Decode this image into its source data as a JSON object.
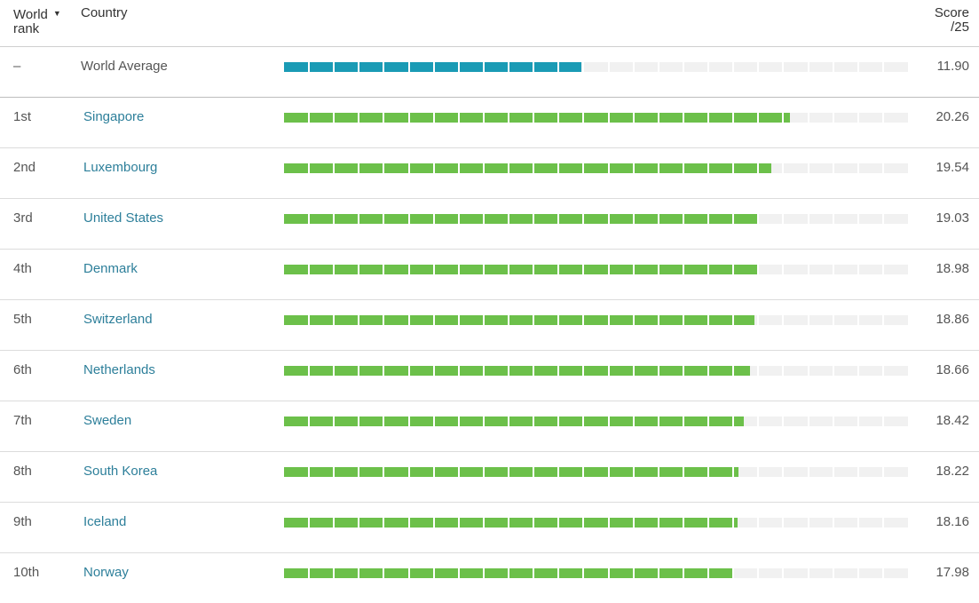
{
  "header": {
    "rank_line1": "World",
    "rank_line2": "rank",
    "country": "Country",
    "score_line1": "Score",
    "score_line2": "/25"
  },
  "max_score": 25,
  "segments": 25,
  "colors": {
    "average": "#1a9bb5",
    "country": "#6cc04a",
    "track": "#f1f1f1"
  },
  "average": {
    "rank": "–",
    "name": "World Average",
    "score": "11.90",
    "value": 11.9
  },
  "rows": [
    {
      "rank": "1st",
      "name": "Singapore",
      "score": "20.26",
      "value": 20.26
    },
    {
      "rank": "2nd",
      "name": "Luxembourg",
      "score": "19.54",
      "value": 19.54
    },
    {
      "rank": "3rd",
      "name": "United States",
      "score": "19.03",
      "value": 19.03
    },
    {
      "rank": "4th",
      "name": "Denmark",
      "score": "18.98",
      "value": 18.98
    },
    {
      "rank": "5th",
      "name": "Switzerland",
      "score": "18.86",
      "value": 18.86
    },
    {
      "rank": "6th",
      "name": "Netherlands",
      "score": "18.66",
      "value": 18.66
    },
    {
      "rank": "7th",
      "name": "Sweden",
      "score": "18.42",
      "value": 18.42
    },
    {
      "rank": "8th",
      "name": "South Korea",
      "score": "18.22",
      "value": 18.22
    },
    {
      "rank": "9th",
      "name": "Iceland",
      "score": "18.16",
      "value": 18.16
    },
    {
      "rank": "10th",
      "name": "Norway",
      "score": "17.98",
      "value": 17.98
    }
  ]
}
